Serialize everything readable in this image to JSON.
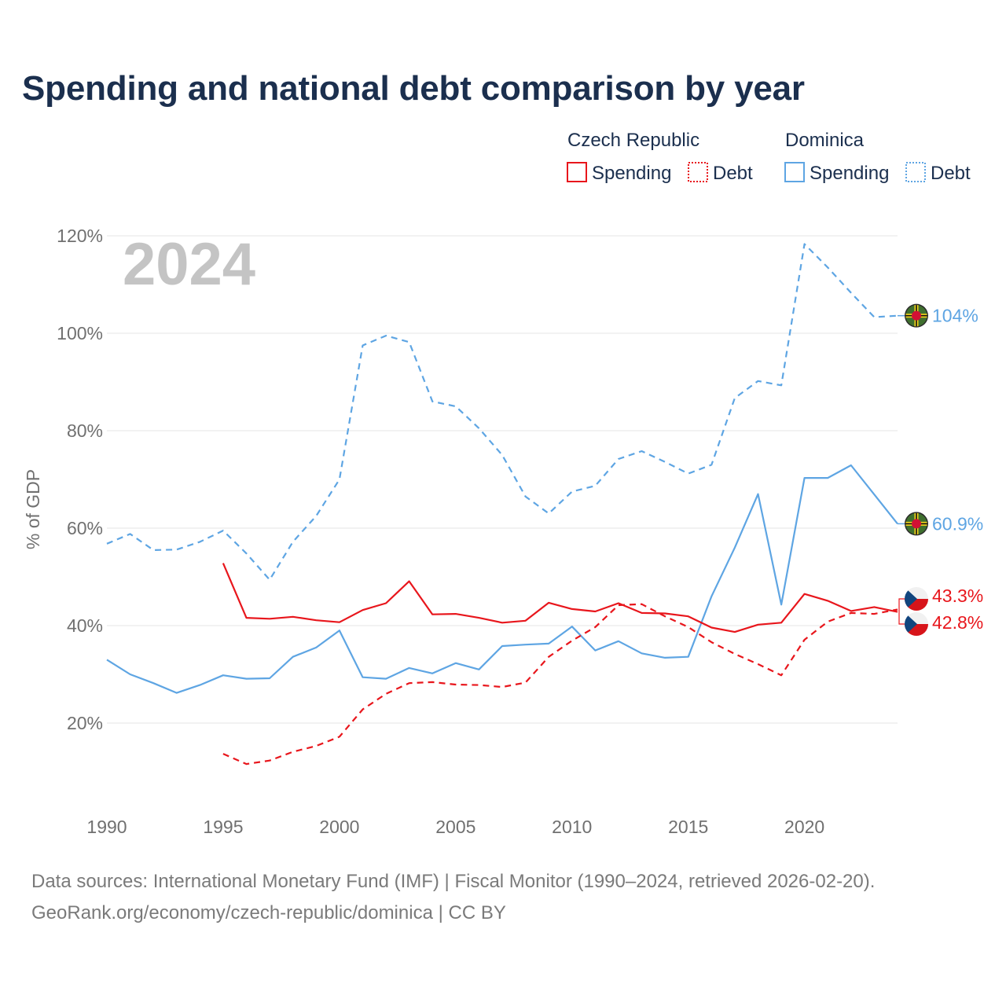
{
  "title": "Spending and national debt comparison by year",
  "legend": {
    "groups": [
      {
        "country": "Czech Republic",
        "color": "#e8161c",
        "items": [
          "Spending",
          "Debt"
        ]
      },
      {
        "country": "Dominica",
        "color": "#5ea5e3",
        "items": [
          "Spending",
          "Debt"
        ]
      }
    ]
  },
  "sources": {
    "line1": "Data sources: International Monetary Fund (IMF) | Fiscal Monitor (1990–2024, retrieved 2026-02-20).",
    "line2": "GeoRank.org/economy/czech-republic/dominica | CC BY"
  },
  "chart_data": {
    "type": "line",
    "ylabel": "% of GDP",
    "xlim": [
      1990,
      2024
    ],
    "ylim": [
      0,
      120
    ],
    "yticks": [
      20,
      40,
      60,
      80,
      100,
      120
    ],
    "ytick_labels": [
      "20%",
      "40%",
      "60%",
      "80%",
      "100%",
      "120%"
    ],
    "xticks": [
      1990,
      1995,
      2000,
      2005,
      2010,
      2015,
      2020
    ],
    "grid": true,
    "year_watermark": "2024",
    "series": [
      {
        "name": "Dominica Debt",
        "country": "Dominica",
        "measure": "Debt",
        "style": "dashed",
        "color": "#5ea5e3",
        "start": 1990,
        "values": [
          56.8,
          58.8,
          55.5,
          55.6,
          57.2,
          59.5,
          54.8,
          49.4,
          57.2,
          62.5,
          70.0,
          97.5,
          99.5,
          98.2,
          86.0,
          85.0,
          80.5,
          75.0,
          66.5,
          63.0,
          67.5,
          68.7,
          74.2,
          75.8,
          73.6,
          71.2,
          73.0,
          86.7,
          90.2,
          89.3,
          118.3,
          113.5,
          108.3,
          103.3,
          103.6
        ],
        "end_label": "104%"
      },
      {
        "name": "Dominica Spending",
        "country": "Dominica",
        "measure": "Spending",
        "style": "solid",
        "color": "#5ea5e3",
        "start": 1990,
        "values": [
          33.0,
          30.0,
          28.2,
          26.2,
          27.8,
          29.8,
          29.1,
          29.2,
          33.6,
          35.5,
          39.0,
          29.4,
          29.1,
          31.3,
          30.2,
          32.3,
          31.0,
          35.8,
          36.1,
          36.3,
          39.8,
          34.9,
          36.8,
          34.3,
          33.4,
          33.6,
          46.0,
          56.0,
          67.0,
          44.3,
          70.3,
          70.3,
          72.9,
          66.9,
          60.9
        ],
        "end_label": "60.9%"
      },
      {
        "name": "Czech Republic Spending",
        "country": "Czech Republic",
        "measure": "Spending",
        "style": "solid",
        "color": "#e8161c",
        "start": 1995,
        "values": [
          52.8,
          41.6,
          41.4,
          41.8,
          41.1,
          40.7,
          43.2,
          44.6,
          49.1,
          42.3,
          42.4,
          41.6,
          40.6,
          41.0,
          44.7,
          43.4,
          42.9,
          44.6,
          42.6,
          42.5,
          41.9,
          39.6,
          38.7,
          40.2,
          40.6,
          46.5,
          45.1,
          43.0,
          43.8,
          42.8
        ],
        "end_label": "42.8%"
      },
      {
        "name": "Czech Republic Debt",
        "country": "Czech Republic",
        "measure": "Debt",
        "style": "dashed",
        "color": "#e8161c",
        "start": 1995,
        "values": [
          13.7,
          11.6,
          12.3,
          14.1,
          15.3,
          17.2,
          22.8,
          26.0,
          28.2,
          28.4,
          27.9,
          27.8,
          27.4,
          28.3,
          33.6,
          36.9,
          39.7,
          44.2,
          44.4,
          41.9,
          39.7,
          36.6,
          34.2,
          32.1,
          29.8,
          37.1,
          40.8,
          42.6,
          42.4,
          43.3
        ],
        "end_label": "43.3%"
      }
    ]
  }
}
